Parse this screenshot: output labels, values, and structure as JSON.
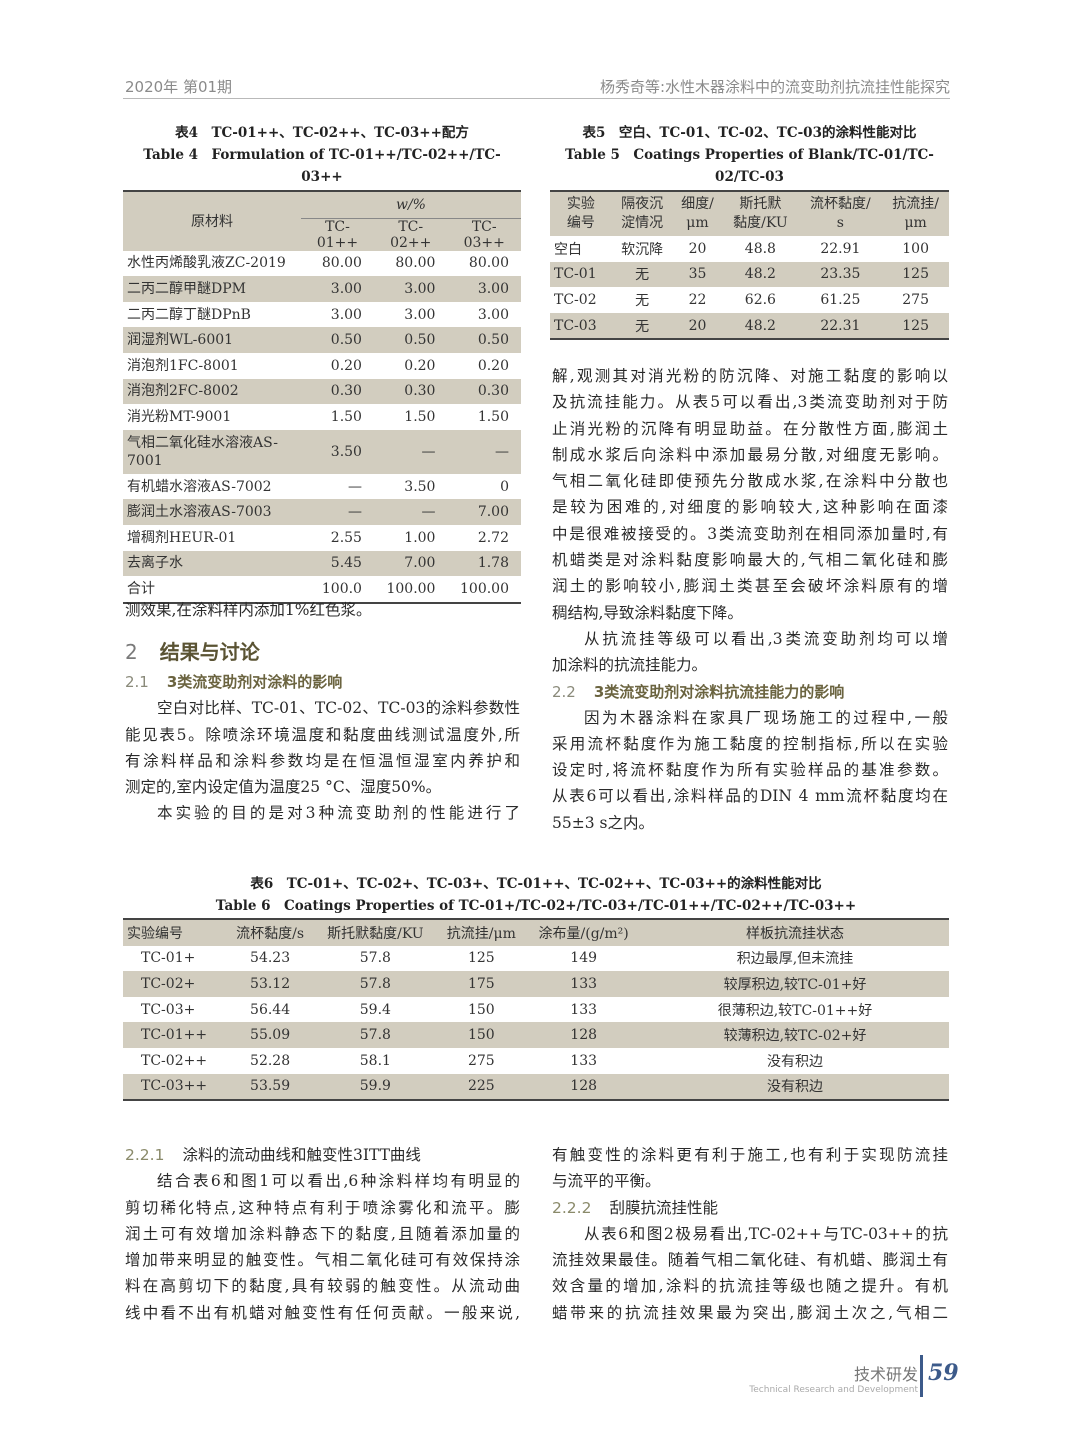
{
  "header": {
    "left": "2020年 第01期",
    "right": "杨秀奇等:水性木器涂料中的流变助剂抗流挂性能探究"
  },
  "table4": {
    "caption_cn": "表4　TC-01++、TC-02++、TC-03++配方",
    "caption_en": "Table 4　Formulation of TC-01++/TC-02++/TC-03++",
    "col_material": "原材料",
    "col_group": "w/%",
    "cols": [
      "TC-01++",
      "TC-02++",
      "TC-03++"
    ],
    "rows": [
      [
        "水性丙烯酸乳液ZC-2019",
        "80.00",
        "80.00",
        "80.00"
      ],
      [
        "二丙二醇甲醚DPM",
        "3.00",
        "3.00",
        "3.00"
      ],
      [
        "二丙二醇丁醚DPnB",
        "3.00",
        "3.00",
        "3.00"
      ],
      [
        "润湿剂WL-6001",
        "0.50",
        "0.50",
        "0.50"
      ],
      [
        "消泡剂1FC-8001",
        "0.20",
        "0.20",
        "0.20"
      ],
      [
        "消泡剂2FC-8002",
        "0.30",
        "0.30",
        "0.30"
      ],
      [
        "消光粉MT-9001",
        "1.50",
        "1.50",
        "1.50"
      ],
      [
        "气相二氧化硅水溶液AS-7001",
        "3.50",
        "—",
        "—"
      ],
      [
        "有机蜡水溶液AS-7002",
        "—",
        "3.50",
        "0"
      ],
      [
        "膨润土水溶液AS-7003",
        "—",
        "—",
        "7.00"
      ],
      [
        "增稠剂HEUR-01",
        "2.55",
        "1.00",
        "2.72"
      ],
      [
        "去离子水",
        "5.45",
        "7.00",
        "1.78"
      ],
      [
        "合计",
        "100.0",
        "100.00",
        "100.00"
      ]
    ]
  },
  "table5": {
    "caption_cn": "表5　空白、TC-01、TC-02、TC-03的涂料性能对比",
    "caption_en": "Table 5　Coatings Properties of Blank/TC-01/TC-02/TC-03",
    "headers": [
      [
        "实验",
        "编号"
      ],
      [
        "隔夜沉",
        "淀情况"
      ],
      [
        "细度/",
        "μm"
      ],
      [
        "斯托默",
        "黏度/KU"
      ],
      [
        "流杯黏度/",
        "s"
      ],
      [
        "抗流挂/",
        "μm"
      ]
    ],
    "rows": [
      [
        "空白",
        "软沉降",
        "20",
        "48.8",
        "22.91",
        "100"
      ],
      [
        "TC-01",
        "无",
        "35",
        "48.2",
        "23.35",
        "125"
      ],
      [
        "TC-02",
        "无",
        "22",
        "62.6",
        "61.25",
        "275"
      ],
      [
        "TC-03",
        "无",
        "20",
        "48.2",
        "22.31",
        "125"
      ]
    ]
  },
  "table6": {
    "caption_cn": "表6　TC-01+、TC-02+、TC-03+、TC-01++、TC-02++、TC-03++的涂料性能对比",
    "caption_en": "Table 6　Coatings Properties of TC-01+/TC-02+/TC-03+/TC-01++/TC-02++/TC-03++",
    "headers": [
      "实验编号",
      "流杯黏度/s",
      "斯托默黏度/KU",
      "抗流挂/μm",
      "涂布量/(g/m²)",
      "样板抗流挂状态"
    ],
    "rows": [
      [
        "TC-01+",
        "54.23",
        "57.8",
        "125",
        "149",
        "积边最厚,但未流挂"
      ],
      [
        "TC-02+",
        "53.12",
        "57.8",
        "175",
        "133",
        "较厚积边,较TC-01+好"
      ],
      [
        "TC-03+",
        "56.44",
        "59.4",
        "150",
        "133",
        "很薄积边,较TC-01++好"
      ],
      [
        "TC-01++",
        "55.09",
        "57.8",
        "150",
        "128",
        "较薄积边,较TC-02+好"
      ],
      [
        "TC-02++",
        "52.28",
        "58.1",
        "275",
        "133",
        "没有积边"
      ],
      [
        "TC-03++",
        "53.59",
        "59.9",
        "225",
        "128",
        "没有积边"
      ]
    ]
  },
  "left_top": {
    "p0": [
      "测效果,在涂料样内添加1%红色浆。"
    ],
    "sec2_num": "2",
    "sec2_title": "结果与讨论",
    "sec21_num": "2.1",
    "sec21_title": "3类流变助剂对涂料的影响",
    "p1": [
      "空白对比样、TC-01、TC-02、TC-03的涂料参数性",
      "能见表5。除喷涂环境温度和黏度曲线测试温度外,所",
      "有涂料样品和涂料参数均是在恒温恒湿室内养护和",
      "测定的,室内设定值为温度25 °C、湿度50%。"
    ],
    "p2": [
      "本实验的目的是对3种流变助剂的性能进行了"
    ]
  },
  "right_top": {
    "p1": [
      "解,观测其对消光粉的防沉降、对施工黏度的影响以",
      "及抗流挂能力。从表5可以看出,3类流变助剂对于防",
      "止消光粉的沉降有明显助益。在分散性方面,膨润土",
      "制成水浆后向涂料中添加最易分散,对细度无影响。",
      "气相二氧化硅即使预先分散成水浆,在涂料中分散也",
      "是较为困难的,对细度的影响较大,这种影响在面漆",
      "中是很难被接受的。3类流变助剂在相同添加量时,有",
      "机蜡类是对涂料黏度影响最大的,气相二氧化硅和膨",
      "润土的影响较小,膨润土类甚至会破坏涂料原有的增",
      "稠结构,导致涂料黏度下降。"
    ],
    "p2": [
      "从抗流挂等级可以看出,3类流变助剂均可以增",
      "加涂料的抗流挂能力。"
    ],
    "sec22_num": "2.2",
    "sec22_title": "3类流变助剂对涂料抗流挂能力的影响",
    "p3": [
      "因为木器涂料在家具厂现场施工的过程中,一般",
      "采用流杯黏度作为施工黏度的控制指标,所以在实验",
      "设定时,将流杯黏度作为所有实验样品的基准参数。",
      "从表6可以看出,涂料样品的DIN 4 mm流杯黏度均在",
      "55±3 s之内。"
    ]
  },
  "left_bottom": {
    "sec221_num": "2.2.1",
    "sec221_title": "涂料的流动曲线和触变性3ITT曲线",
    "p1": [
      "结合表6和图1可以看出,6种涂料样均有明显的",
      "剪切稀化特点,这种特点有利于喷涂雾化和流平。膨",
      "润土可有效增加涂料静态下的黏度,且随着添加量的",
      "增加带来明显的触变性。气相二氧化硅可有效保持涂",
      "料在高剪切下的黏度,具有较弱的触变性。从流动曲",
      "线中看不出有机蜡对触变性有任何贡献。一般来说,"
    ]
  },
  "right_bottom": {
    "p0": [
      "有触变性的涂料更有利于施工,也有利于实现防流挂",
      "与流平的平衡。"
    ],
    "sec222_num": "2.2.2",
    "sec222_title": "刮膜抗流挂性能",
    "p1": [
      "从表6和图2极易看出,TC-02++与TC-03++的抗",
      "流挂效果最佳。随着气相二氧化硅、有机蜡、膨润土有",
      "效含量的增加,涂料的抗流挂等级也随之提升。有机",
      "蜡带来的抗流挂效果最为突出,膨润土次之,气相二"
    ]
  },
  "footer": {
    "section_cn": "技术研发",
    "section_en": "Technical Research and Development",
    "page": "59"
  },
  "colors": {
    "table_shade": "#d2cdbf",
    "heading": "#5a5333",
    "footer_bar": "#3c5a8a"
  }
}
